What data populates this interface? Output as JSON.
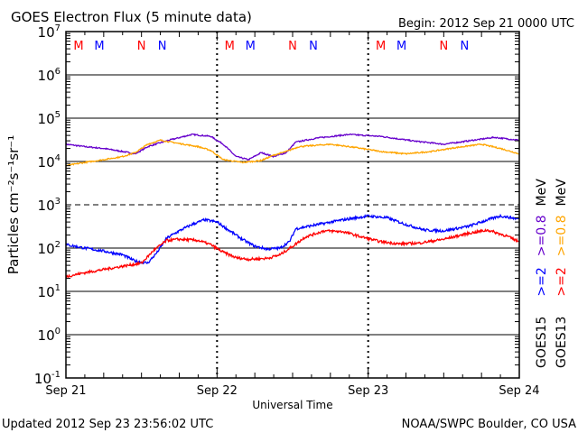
{
  "chart_data": {
    "type": "line",
    "title": "GOES Electron Flux (5 minute data)",
    "begin_label": "Begin: 2012 Sep 21 0000 UTC",
    "xlabel": "Universal Time",
    "ylabel": "Particles cm⁻²s⁻¹sr⁻¹",
    "yscale": "log",
    "ylim": [
      0.1,
      10000000
    ],
    "y_ticks": [
      {
        "base": "10",
        "exp": "7",
        "value": 10000000
      },
      {
        "base": "10",
        "exp": "6",
        "value": 1000000
      },
      {
        "base": "10",
        "exp": "5",
        "value": 100000
      },
      {
        "base": "10",
        "exp": "4",
        "value": 10000
      },
      {
        "base": "10",
        "exp": "3",
        "value": 1000
      },
      {
        "base": "10",
        "exp": "2",
        "value": 100
      },
      {
        "base": "10",
        "exp": "1",
        "value": 10
      },
      {
        "base": "10",
        "exp": "0",
        "value": 1
      },
      {
        "base": "10",
        "exp": "-1",
        "value": 0.1
      }
    ],
    "dashed_threshold": 1000,
    "xlim_hours": [
      0,
      72
    ],
    "x_ticks": [
      {
        "label": "Sep 21",
        "hour": 0
      },
      {
        "label": "Sep 22",
        "hour": 24
      },
      {
        "label": "Sep 23",
        "hour": 48
      },
      {
        "label": "Sep 24",
        "hour": 72
      }
    ],
    "markers": [
      {
        "label": "M",
        "hour": 2.0,
        "color": "#ff0000"
      },
      {
        "label": "M",
        "hour": 5.3,
        "color": "#0000ff"
      },
      {
        "label": "N",
        "hour": 12.0,
        "color": "#ff0000"
      },
      {
        "label": "N",
        "hour": 15.3,
        "color": "#0000ff"
      },
      {
        "label": "M",
        "hour": 26.0,
        "color": "#ff0000"
      },
      {
        "label": "M",
        "hour": 29.3,
        "color": "#0000ff"
      },
      {
        "label": "N",
        "hour": 36.0,
        "color": "#ff0000"
      },
      {
        "label": "N",
        "hour": 39.3,
        "color": "#0000ff"
      },
      {
        "label": "M",
        "hour": 50.0,
        "color": "#ff0000"
      },
      {
        "label": "M",
        "hour": 53.3,
        "color": "#0000ff"
      },
      {
        "label": "N",
        "hour": 60.0,
        "color": "#ff0000"
      },
      {
        "label": "N",
        "hour": 63.3,
        "color": "#0000ff"
      }
    ],
    "series": [
      {
        "name": "GOES15 >=0.8 MeV",
        "color": "#6600cc",
        "points": [
          [
            0,
            25000
          ],
          [
            3,
            22000
          ],
          [
            6,
            20000
          ],
          [
            9,
            17000
          ],
          [
            11,
            15000
          ],
          [
            13,
            22000
          ],
          [
            16,
            30000
          ],
          [
            20,
            42000
          ],
          [
            23,
            38000
          ],
          [
            25,
            25000
          ],
          [
            27,
            13000
          ],
          [
            29,
            11000
          ],
          [
            31,
            16000
          ],
          [
            33,
            13000
          ],
          [
            35,
            16000
          ],
          [
            36.5,
            28000
          ],
          [
            40,
            35000
          ],
          [
            45,
            42000
          ],
          [
            50,
            38000
          ],
          [
            55,
            30000
          ],
          [
            60,
            25000
          ],
          [
            64,
            30000
          ],
          [
            68,
            36000
          ],
          [
            72,
            31000
          ]
        ]
      },
      {
        "name": "GOES13 >=0.8 MeV",
        "color": "#ffa500",
        "points": [
          [
            0,
            8000
          ],
          [
            3,
            9500
          ],
          [
            6,
            11000
          ],
          [
            9,
            13000
          ],
          [
            11,
            16000
          ],
          [
            13,
            25000
          ],
          [
            15,
            31000
          ],
          [
            18,
            26000
          ],
          [
            21,
            22000
          ],
          [
            23,
            18000
          ],
          [
            25,
            11000
          ],
          [
            28,
            9500
          ],
          [
            31,
            10500
          ],
          [
            33,
            14000
          ],
          [
            35,
            17000
          ],
          [
            37,
            22000
          ],
          [
            42,
            25000
          ],
          [
            46,
            21000
          ],
          [
            50,
            17000
          ],
          [
            54,
            15000
          ],
          [
            58,
            17000
          ],
          [
            62,
            21000
          ],
          [
            66,
            25000
          ],
          [
            69,
            20000
          ],
          [
            72,
            15000
          ]
        ]
      },
      {
        "name": "GOES15 >=2 MeV",
        "color": "#0000ff",
        "points": [
          [
            0,
            120
          ],
          [
            3,
            100
          ],
          [
            6,
            85
          ],
          [
            9,
            70
          ],
          [
            11,
            50
          ],
          [
            13,
            45
          ],
          [
            14.5,
            80
          ],
          [
            16,
            170
          ],
          [
            18,
            250
          ],
          [
            20,
            350
          ],
          [
            22,
            450
          ],
          [
            24,
            400
          ],
          [
            26,
            250
          ],
          [
            28,
            160
          ],
          [
            30,
            110
          ],
          [
            32,
            95
          ],
          [
            34,
            100
          ],
          [
            35.5,
            140
          ],
          [
            36.5,
            280
          ],
          [
            40,
            350
          ],
          [
            44,
            450
          ],
          [
            48,
            550
          ],
          [
            51,
            500
          ],
          [
            54,
            350
          ],
          [
            57,
            260
          ],
          [
            60,
            250
          ],
          [
            64,
            320
          ],
          [
            67,
            450
          ],
          [
            69,
            550
          ],
          [
            72,
            470
          ]
        ]
      },
      {
        "name": "GOES13 >=2 MeV",
        "color": "#ff0000",
        "points": [
          [
            0,
            22
          ],
          [
            3,
            27
          ],
          [
            6,
            32
          ],
          [
            9,
            38
          ],
          [
            12,
            45
          ],
          [
            14,
            90
          ],
          [
            16,
            150
          ],
          [
            18,
            160
          ],
          [
            21,
            150
          ],
          [
            23,
            120
          ],
          [
            25,
            80
          ],
          [
            27,
            60
          ],
          [
            29,
            55
          ],
          [
            32,
            58
          ],
          [
            34,
            70
          ],
          [
            36,
            110
          ],
          [
            38,
            180
          ],
          [
            41,
            250
          ],
          [
            44,
            240
          ],
          [
            47,
            180
          ],
          [
            50,
            140
          ],
          [
            53,
            125
          ],
          [
            56,
            130
          ],
          [
            60,
            160
          ],
          [
            64,
            220
          ],
          [
            67,
            260
          ],
          [
            70,
            190
          ],
          [
            72,
            140
          ]
        ]
      }
    ],
    "legend": {
      "placement": "right-vertical",
      "groups": [
        {
          "satellite": "GOES15",
          "entries": [
            {
              "text": ">=2",
              "color": "#0000ff"
            },
            {
              "text": ">=0.8",
              "color": "#6600cc"
            }
          ],
          "unit": "MeV"
        },
        {
          "satellite": "GOES13",
          "entries": [
            {
              "text": ">=2",
              "color": "#ff0000"
            },
            {
              "text": ">=0.8",
              "color": "#ffa500"
            }
          ],
          "unit": "MeV"
        }
      ]
    },
    "grid": true
  },
  "footer": {
    "updated": "Updated 2012 Sep 23 23:56:02 UTC",
    "credit": "NOAA/SWPC Boulder, CO USA"
  }
}
